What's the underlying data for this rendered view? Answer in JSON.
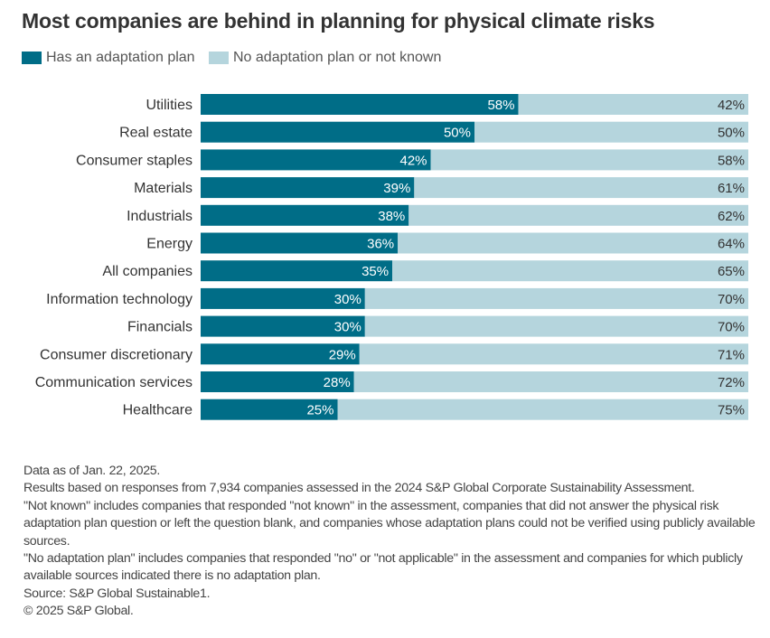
{
  "chart_data": {
    "type": "bar",
    "orientation": "horizontal",
    "stacked": true,
    "normalized_percent": true,
    "title": "Most companies are behind in planning for physical climate risks",
    "categories": [
      "Utilities",
      "Real estate",
      "Consumer staples",
      "Materials",
      "Industrials",
      "Energy",
      "All companies",
      "Information technology",
      "Financials",
      "Consumer discretionary",
      "Communication services",
      "Healthcare"
    ],
    "series": [
      {
        "name": "Has an adaptation plan",
        "color": "#006d87",
        "values": [
          58,
          50,
          42,
          39,
          38,
          36,
          35,
          30,
          30,
          29,
          28,
          25
        ]
      },
      {
        "name": "No adaptation plan or not known",
        "color": "#b5d5dd",
        "values": [
          42,
          50,
          58,
          61,
          62,
          64,
          65,
          70,
          70,
          71,
          72,
          75
        ]
      }
    ],
    "xlim": [
      0,
      100
    ],
    "grid": false,
    "legend_position": "top-left"
  },
  "notes": [
    "Data as of Jan. 22, 2025.",
    "Results based on responses from 7,934 companies assessed in the 2024 S&P Global Corporate Sustainability Assessment.",
    "\"Not known\" includes companies that responded \"not known\" in the assessment, companies that did not answer the physical risk adaptation plan question or left the question blank, and companies whose adaptation plans could not be verified using publicly available sources.",
    "\"No adaptation plan\" includes companies that responded \"no\" or \"not applicable\" in the assessment and companies for which publicly available sources indicated there is no adaptation plan.",
    "Source: S&P Global Sustainable1.",
    "© 2025 S&P Global."
  ]
}
